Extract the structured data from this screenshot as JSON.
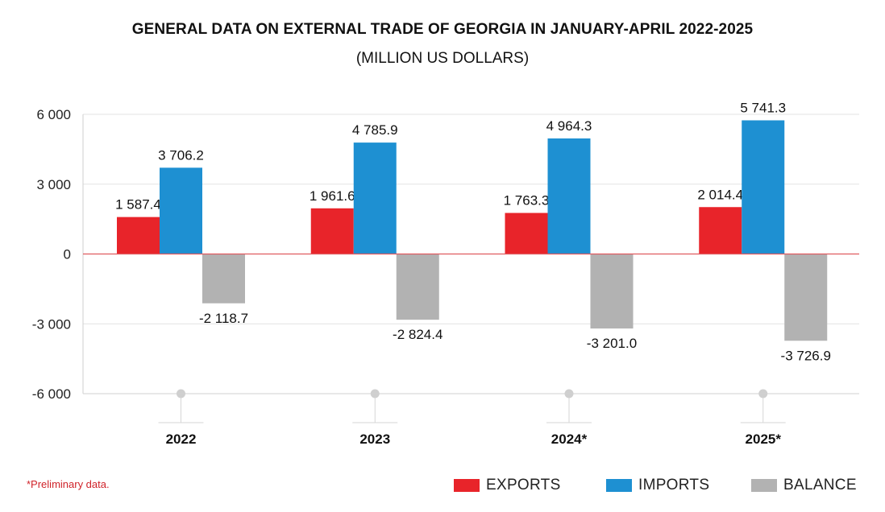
{
  "header": {
    "title": "GENERAL DATA ON EXTERNAL TRADE OF GEORGIA IN JANUARY-APRIL 2022-2025",
    "subtitle": "(MILLION US DOLLARS)"
  },
  "footnote": "*Preliminary data.",
  "legend": [
    {
      "label": "EXPORTS",
      "color": "#e8242a"
    },
    {
      "label": "IMPORTS",
      "color": "#1e90d2"
    },
    {
      "label": "BALANCE",
      "color": "#b2b2b2"
    }
  ],
  "chart_data": {
    "type": "bar",
    "title": "GENERAL DATA ON EXTERNAL TRADE OF GEORGIA IN JANUARY-APRIL 2022-2025",
    "subtitle": "(MILLION US DOLLARS)",
    "categories": [
      "2022",
      "2023",
      "2024*",
      "2025*"
    ],
    "series": [
      {
        "name": "EXPORTS",
        "color": "#e8242a",
        "values": [
          1587.4,
          1961.6,
          1763.3,
          2014.4
        ],
        "labels": [
          "1 587.4",
          "1 961.6",
          "1 763.3",
          "2 014.4"
        ]
      },
      {
        "name": "IMPORTS",
        "color": "#1e90d2",
        "values": [
          3706.2,
          4785.9,
          4964.3,
          5741.3
        ],
        "labels": [
          "3 706.2",
          "4 785.9",
          "4 964.3",
          "5 741.3"
        ]
      },
      {
        "name": "BALANCE",
        "color": "#b2b2b2",
        "values": [
          -2118.7,
          -2824.4,
          -3201.0,
          -3726.9
        ],
        "labels": [
          "-2 118.7",
          "-2 824.4",
          "-3 201.0",
          "-3 726.9"
        ]
      }
    ],
    "ylim": [
      -6000,
      6000
    ],
    "yticks": [
      6000,
      3000,
      0,
      -3000,
      -6000
    ],
    "ytick_labels": [
      "6 000",
      "3 000",
      "0",
      "-3 000",
      "-6 000"
    ],
    "grid": true,
    "legend_position": "bottom-right",
    "zero_line_color": "#e05a5f"
  }
}
